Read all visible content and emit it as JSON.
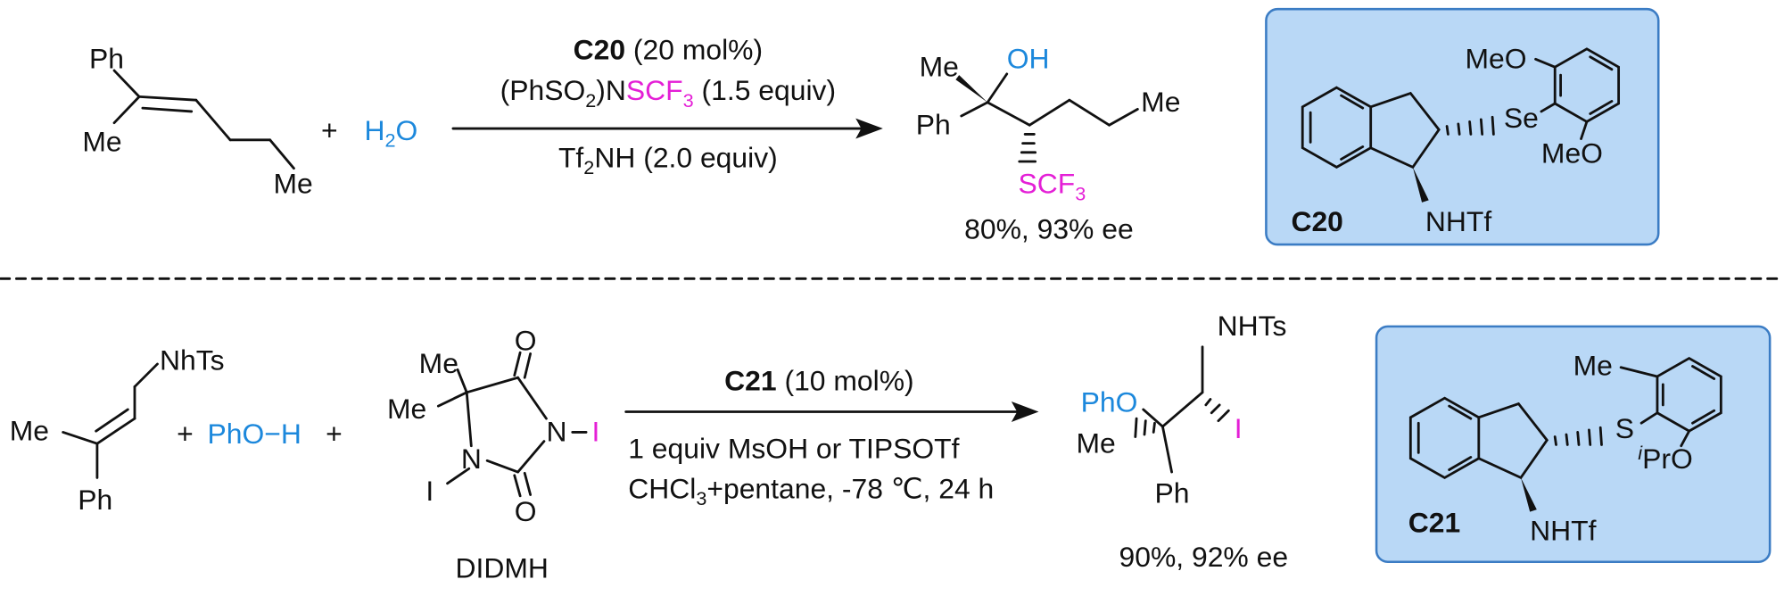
{
  "reaction_1": {
    "substrate": {
      "ph": "Ph",
      "me": "Me",
      "me_end": "Me"
    },
    "plus": "+",
    "water": [
      "H",
      "2",
      "O"
    ],
    "conditions": {
      "catalyst": [
        "C20",
        " (20 mol%)"
      ],
      "reagent": [
        "(PhSO",
        "2",
        ")N",
        "SCF",
        "3",
        " (1.5 equiv)"
      ],
      "acid": [
        "Tf",
        "2",
        "NH (2.0 equiv)"
      ]
    },
    "product": {
      "me": "Me",
      "oh": "OH",
      "ph": "Ph",
      "scf3": [
        "SCF",
        "3"
      ],
      "me_chain": "Me"
    },
    "yield": "80%, 93% ee",
    "catalyst_box": {
      "meo_top": "MeO",
      "se": "Se",
      "meo_bottom": "MeO",
      "nhtf": "NHTf",
      "name": "C20"
    }
  },
  "reaction_2": {
    "substrate": {
      "nhts": "NhTs",
      "me": "Me",
      "ph": "Ph"
    },
    "plus_1": "+",
    "phenol": "PhO−H",
    "plus_2": "+",
    "didmh": {
      "me_1": "Me",
      "me_2": "Me",
      "o_top": "O",
      "n_right": "N",
      "i_right": "I",
      "n_left": "N",
      "i_left": "I",
      "o_bottom": "O",
      "name": "DIDMH"
    },
    "conditions": {
      "catalyst": [
        "C21",
        " (10 mol%)"
      ],
      "additive": "1 equiv MsOH or TIPSOTf",
      "solvent": [
        "CHCl",
        "3",
        "+pentane, -78 ℃, 24 h"
      ]
    },
    "product": {
      "nhts": "NHTs",
      "pho": "PhO",
      "me": "Me",
      "i": "I",
      "ph": "Ph"
    },
    "yield": "90%, 92% ee",
    "catalyst_box": {
      "me": "Me",
      "s": "S",
      "ipro": [
        "i",
        "PrO"
      ],
      "nhtf": "NHTf",
      "name": "C21"
    }
  }
}
